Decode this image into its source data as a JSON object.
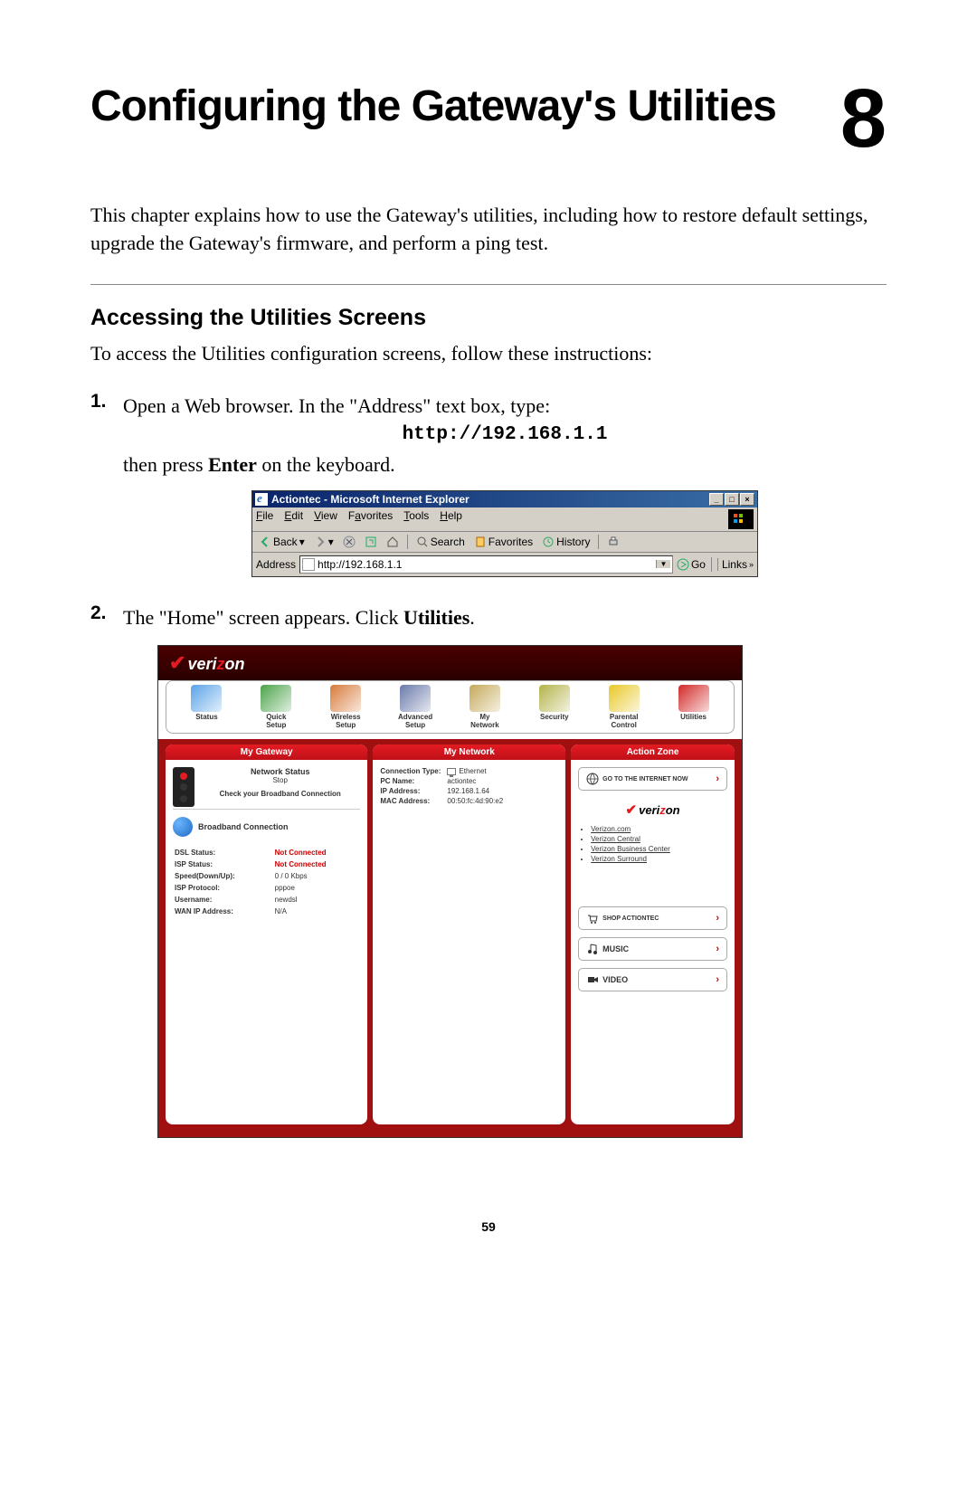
{
  "chapter": {
    "title": "Configuring the Gateway's Utilities",
    "number": "8"
  },
  "intro": "This chapter explains how to use the Gateway's utilities, including how to restore default settings, upgrade the Gateway's firmware, and perform a ping test.",
  "section": {
    "heading": "Accessing the Utilities Screens",
    "intro": "To access the Utilities configuration screens, follow these instructions:"
  },
  "steps": {
    "s1": {
      "num": "1.",
      "line1_a": "Open a Web browser. In the \"Address\" text box, type:",
      "url": "http://192.168.1.1",
      "line2_a": "then press ",
      "line2_b": "Enter",
      "line2_c": " on the keyboard."
    },
    "s2": {
      "num": "2.",
      "line_a": "The \"Home\" screen appears. Click ",
      "line_b": "Utilities",
      "line_c": "."
    }
  },
  "ie": {
    "title": "Actiontec - Microsoft Internet Explorer",
    "menu": {
      "file": "File",
      "edit": "Edit",
      "view": "View",
      "favorites": "Favorites",
      "tools": "Tools",
      "help": "Help"
    },
    "toolbar": {
      "back": "Back",
      "search": "Search",
      "fav": "Favorites",
      "history": "History"
    },
    "address_label": "Address",
    "address_value": "http://192.168.1.1",
    "go": "Go",
    "links": "Links",
    "win_min": "_",
    "win_max": "□",
    "win_close": "×"
  },
  "verizon": {
    "brand_pre": "veri",
    "brand_z": "z",
    "brand_post": "on",
    "nav": [
      {
        "label": "Status",
        "color": "#5aa3e8"
      },
      {
        "label": "Quick Setup",
        "color": "#4aa34a"
      },
      {
        "label": "Wireless Setup",
        "color": "#d87a3a"
      },
      {
        "label": "Advanced Setup",
        "color": "#6a7aaa"
      },
      {
        "label": "My Network",
        "color": "#c5a95a"
      },
      {
        "label": "Security",
        "color": "#b3b34a"
      },
      {
        "label": "Parental Control",
        "color": "#e8c828"
      },
      {
        "label": "Utilities",
        "color": "#d22828"
      }
    ],
    "panels": {
      "gateway": {
        "title": "My Gateway",
        "net_status": "Network Status",
        "stop": "Stop",
        "check_bb": "Check your Broadband Connection",
        "bb_conn": "Broadband Connection",
        "stats": [
          {
            "label": "DSL Status:",
            "value": "Not Connected",
            "red": true
          },
          {
            "label": "ISP Status:",
            "value": "Not Connected",
            "red": true
          },
          {
            "label": "Speed(Down/Up):",
            "value": "0 / 0 Kbps",
            "red": false
          },
          {
            "label": "ISP Protocol:",
            "value": "pppoe",
            "red": false
          },
          {
            "label": "Username:",
            "value": "newdsl",
            "red": false
          },
          {
            "label": "WAN IP Address:",
            "value": "N/A",
            "red": false
          }
        ]
      },
      "network": {
        "title": "My Network",
        "rows": [
          {
            "key": "Connection Type:",
            "val": "Ethernet",
            "icon": true
          },
          {
            "key": "PC Name:",
            "val": "actiontec",
            "icon": false
          },
          {
            "key": "IP Address:",
            "val": "192.168.1.64",
            "icon": false
          },
          {
            "key": "MAC Address:",
            "val": "00:50:fc:4d:90:e2",
            "icon": false
          }
        ]
      },
      "action": {
        "title": "Action Zone",
        "goto": "GO TO THE INTERNET NOW",
        "links": [
          "Verizon.com",
          "Verizon Central",
          "Verizon Business Center",
          "Verizon Surround"
        ],
        "shop": "SHOP ACTIONTEC",
        "music": "MUSIC",
        "video": "VIDEO"
      }
    }
  },
  "page_number": "59",
  "colors": {
    "vz_red": "#e31b23",
    "vz_body": "#a01010",
    "ie_bg": "#d4d0c8"
  }
}
